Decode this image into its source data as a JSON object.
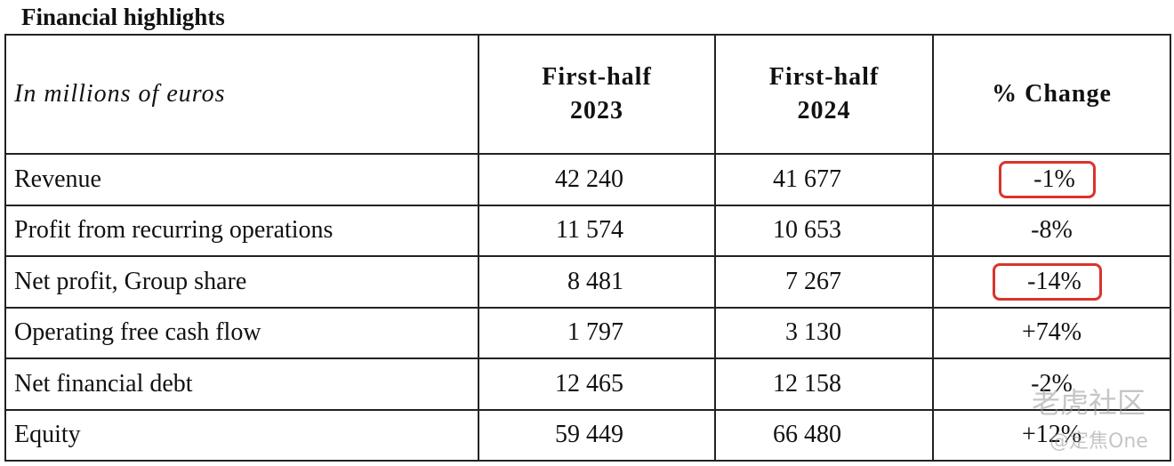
{
  "header": {
    "title": "Financial highlights"
  },
  "table": {
    "columns": [
      "In millions of euros",
      "First-half\n2023",
      "First-half\n2024",
      "% Change"
    ],
    "rows": [
      [
        "Revenue",
        "42 240",
        "41 677",
        "-1%"
      ],
      [
        "Profit from recurring operations",
        "11 574",
        "10 653",
        "-8%"
      ],
      [
        "Net profit, Group share",
        "8 481",
        "7 267",
        "-14%"
      ],
      [
        "Operating free cash flow",
        "1 797",
        "3 130",
        "+74%"
      ],
      [
        "Net financial debt",
        "12 465",
        "12 158",
        "-2%"
      ],
      [
        "Equity",
        "59 449",
        "66 480",
        "+12%"
      ]
    ]
  },
  "watermark": [
    "老虎社区",
    "@定焦One"
  ]
}
